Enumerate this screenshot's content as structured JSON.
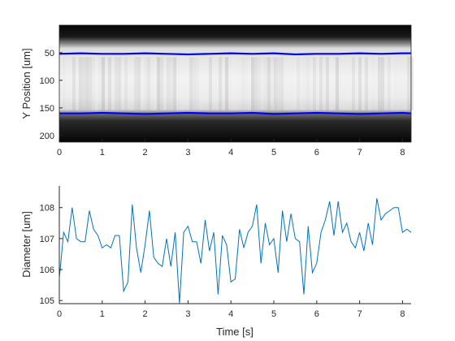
{
  "chart_data": [
    {
      "type": "heatmap",
      "ylabel": "Y Position [um]",
      "xlabel": "",
      "xlim": [
        0,
        8.2
      ],
      "ylim": [
        212,
        0
      ],
      "y_direction": "reverse",
      "xticks": [
        0,
        1,
        2,
        3,
        4,
        5,
        6,
        7,
        8
      ],
      "yticks": [
        50,
        100,
        150,
        200
      ],
      "edge_color": "#0000ff",
      "image_colormap": "gray",
      "series": [
        {
          "role": "top-edge",
          "x": [
            0,
            0.5,
            1,
            1.5,
            2,
            2.5,
            3,
            3.5,
            4,
            4.5,
            5,
            5.5,
            6,
            6.5,
            7,
            7.5,
            8,
            8.2
          ],
          "values": [
            52,
            51,
            52,
            52,
            51,
            52,
            53,
            52,
            51,
            52,
            51,
            53,
            52,
            52,
            51,
            52,
            51,
            51
          ]
        },
        {
          "role": "bottom-edge",
          "x": [
            0,
            0.5,
            1,
            1.5,
            2,
            2.5,
            3,
            3.5,
            4,
            4.5,
            5,
            5.5,
            6,
            6.5,
            7,
            7.5,
            8,
            8.2
          ],
          "values": [
            160,
            160,
            159,
            160,
            161,
            160,
            159,
            160,
            160,
            159,
            161,
            160,
            159,
            160,
            161,
            160,
            159,
            160
          ]
        }
      ]
    },
    {
      "type": "line",
      "xlabel": "Time [s]",
      "ylabel": "Diameter [um]",
      "xlim": [
        0,
        8.2
      ],
      "ylim": [
        104.9,
        108.7
      ],
      "xticks": [
        0,
        1,
        2,
        3,
        4,
        5,
        6,
        7,
        8
      ],
      "yticks": [
        105,
        106,
        107,
        108
      ],
      "line_color": "#0072bd",
      "x": [
        0,
        0.1,
        0.2,
        0.3,
        0.4,
        0.5,
        0.6,
        0.7,
        0.8,
        0.9,
        1.0,
        1.1,
        1.2,
        1.3,
        1.4,
        1.5,
        1.6,
        1.7,
        1.8,
        1.9,
        2.0,
        2.1,
        2.2,
        2.3,
        2.4,
        2.5,
        2.6,
        2.7,
        2.8,
        2.9,
        3.0,
        3.1,
        3.2,
        3.3,
        3.4,
        3.5,
        3.6,
        3.7,
        3.8,
        3.9,
        4.0,
        4.1,
        4.2,
        4.3,
        4.4,
        4.5,
        4.6,
        4.7,
        4.8,
        4.9,
        5.0,
        5.1,
        5.2,
        5.3,
        5.4,
        5.5,
        5.6,
        5.7,
        5.8,
        5.9,
        6.0,
        6.1,
        6.2,
        6.3,
        6.4,
        6.5,
        6.6,
        6.7,
        6.8,
        6.9,
        7.0,
        7.1,
        7.2,
        7.3,
        7.4,
        7.5,
        7.6,
        7.7,
        7.8,
        7.9,
        8.0,
        8.1,
        8.2
      ],
      "values": [
        105.7,
        107.2,
        106.9,
        108.0,
        107.0,
        106.9,
        106.9,
        107.9,
        107.3,
        107.1,
        106.7,
        106.8,
        106.7,
        107.1,
        107.1,
        105.3,
        105.6,
        108.1,
        106.7,
        105.9,
        106.8,
        107.9,
        106.4,
        106.2,
        106.1,
        107.0,
        106.1,
        107.2,
        104.9,
        107.2,
        107.4,
        106.9,
        106.9,
        106.2,
        107.6,
        106.6,
        107.2,
        105.2,
        107.1,
        106.8,
        105.6,
        105.7,
        107.3,
        106.7,
        107.2,
        107.4,
        108.1,
        106.2,
        107.5,
        106.8,
        107.0,
        105.9,
        107.9,
        106.9,
        107.8,
        107.0,
        106.9,
        105.2,
        107.4,
        105.9,
        106.2,
        107.2,
        107.6,
        108.2,
        107.1,
        108.2,
        107.2,
        107.5,
        106.9,
        106.7,
        107.2,
        106.6,
        107.5,
        106.8,
        108.3,
        107.6,
        107.8,
        107.9,
        108.0,
        108.0,
        107.2,
        107.3,
        107.2
      ]
    }
  ]
}
